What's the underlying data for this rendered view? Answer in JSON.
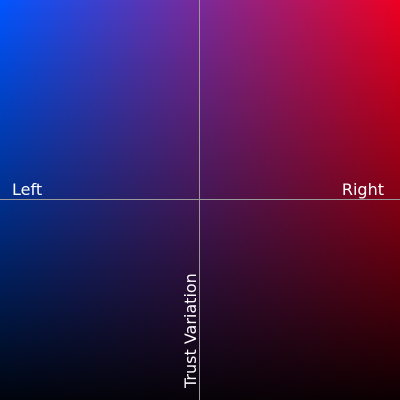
{
  "axes": {
    "horizontal": {
      "left_label": "Left",
      "right_label": "Right"
    },
    "vertical": {
      "label": "Trust Variation"
    }
  },
  "colors": {
    "left": "#0055ff",
    "center": "#7a2a9a",
    "right": "#ee0022",
    "bottom": "#000000",
    "axis_line": "#9a9a9a",
    "label_text": "#ffffff"
  }
}
